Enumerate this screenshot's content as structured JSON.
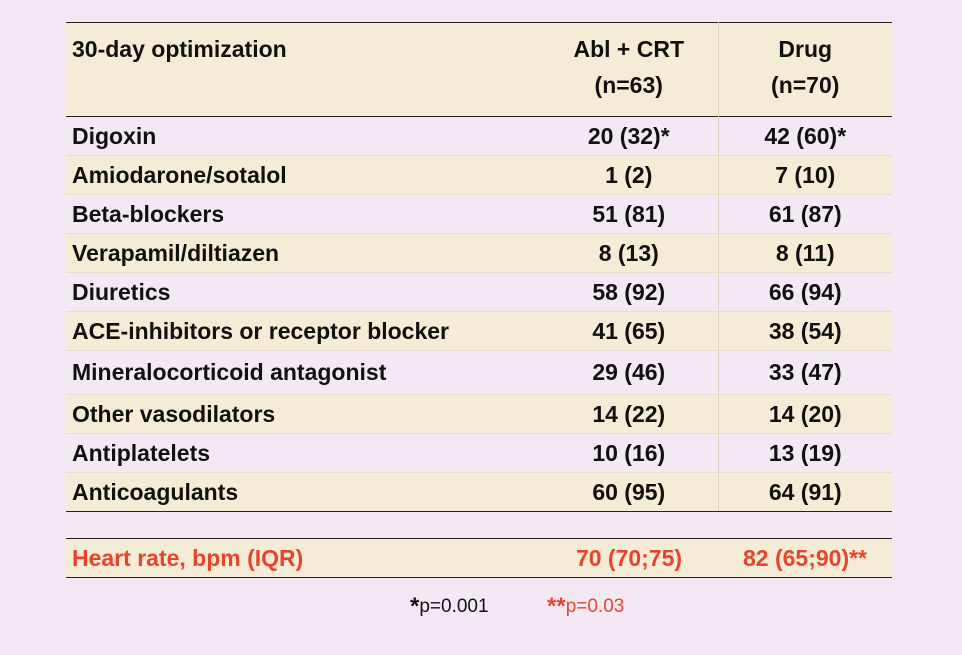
{
  "header": {
    "title": "30-day optimization",
    "col1_line1": "Abl + CRT",
    "col1_line2": "(n=63)",
    "col2_line1": "Drug",
    "col2_line2": "(n=70)"
  },
  "rows": [
    {
      "label": "Digoxin",
      "abl": "20 (32)*",
      "drug": "42 (60)*"
    },
    {
      "label": "Amiodarone/sotalol",
      "abl": "1 (2)",
      "drug": "7 (10)"
    },
    {
      "label": "Beta-blockers",
      "abl": "51 (81)",
      "drug": "61 (87)"
    },
    {
      "label": "Verapamil/diltiazen",
      "abl": "8 (13)",
      "drug": "8 (11)"
    },
    {
      "label": "Diuretics",
      "abl": "58 (92)",
      "drug": "66 (94)"
    },
    {
      "label": "ACE-inhibitors or receptor blocker",
      "abl": "41 (65)",
      "drug": "38 (54)"
    },
    {
      "label": "Mineralocorticoid antagonist",
      "abl": "29 (46)",
      "drug": "33 (47)"
    },
    {
      "label": "Other vasodilators",
      "abl": "14 (22)",
      "drug": "14 (20)"
    },
    {
      "label": "Antiplatelets",
      "abl": "10 (16)",
      "drug": "13 (19)"
    },
    {
      "label": "Anticoagulants",
      "abl": "60 (95)",
      "drug": "64 (91)"
    }
  ],
  "heart_rate": {
    "label": "Heart rate, bpm (IQR)",
    "abl": "70 (70;75)",
    "drug": "82 (65;90)**"
  },
  "footnotes": {
    "fn1_star": "*",
    "fn1_text": "p=0.001",
    "fn2_star": "**",
    "fn2_text": "p=0.03"
  },
  "colors": {
    "background": "#f3e9f4",
    "shade": "#f5ecd8",
    "highlight": "#e8442a"
  }
}
